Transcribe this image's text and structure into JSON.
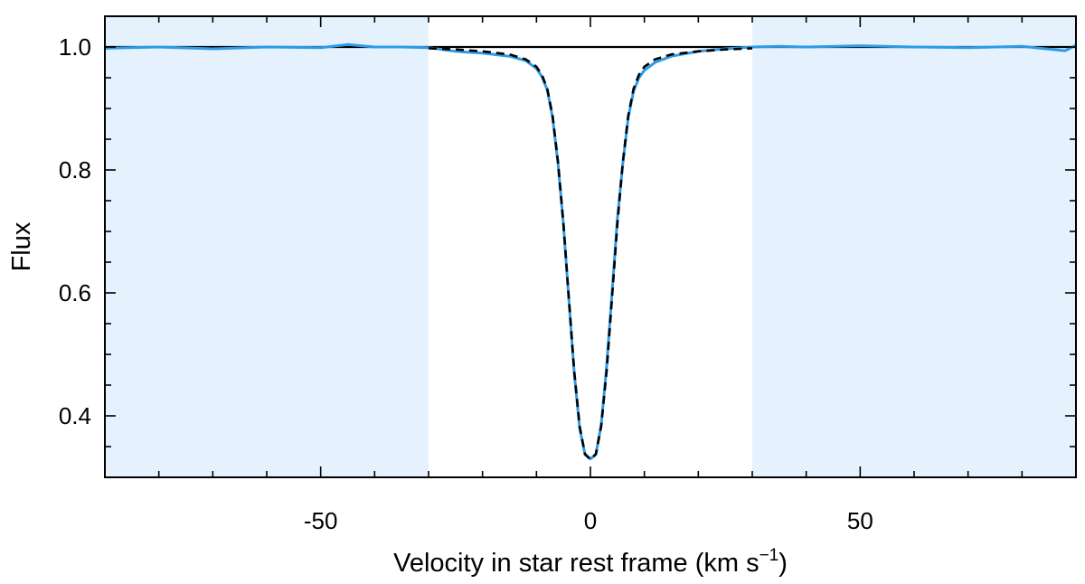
{
  "chart_data": {
    "type": "line",
    "title": "",
    "xlabel": "Velocity in star rest frame (km s",
    "xlabel_unit_exponent": "−1",
    "xlabel_close": ")",
    "ylabel": "Flux",
    "xlim": [
      -90,
      90
    ],
    "ylim": [
      0.3,
      1.05
    ],
    "x_ticks": [
      -50,
      0,
      50
    ],
    "x_tick_labels": [
      "-50",
      "0",
      "50"
    ],
    "y_ticks": [
      0.4,
      0.6,
      0.8,
      1.0
    ],
    "y_tick_labels": [
      "0.4",
      "0.6",
      "0.8",
      "1.0"
    ],
    "grid": false,
    "legend": "none",
    "shaded_regions": [
      {
        "x0": -90,
        "x1": -30,
        "color": "#e5f2fd"
      },
      {
        "x0": 30,
        "x1": 90,
        "color": "#e5f2fd"
      }
    ],
    "continuum": {
      "y": 1.0,
      "color": "#000000",
      "style": "solid"
    },
    "series": [
      {
        "style": "solid",
        "color": "#2d9be8",
        "x": [
          -90,
          -80,
          -70,
          -60,
          -50,
          -45,
          -40,
          -35,
          -30,
          -25,
          -20,
          -15,
          -12,
          -10,
          -9,
          -8,
          -7,
          -6,
          -5,
          -4,
          -3,
          -2,
          -1,
          0,
          1,
          2,
          3,
          4,
          5,
          6,
          7,
          8,
          9,
          10,
          12,
          15,
          20,
          25,
          30,
          35,
          40,
          50,
          60,
          70,
          80,
          88,
          90
        ],
        "y": [
          0.998,
          1.0,
          0.997,
          1.0,
          0.999,
          1.004,
          1.0,
          1.0,
          0.999,
          0.993,
          0.99,
          0.985,
          0.978,
          0.965,
          0.952,
          0.93,
          0.885,
          0.81,
          0.71,
          0.59,
          0.47,
          0.38,
          0.337,
          0.33,
          0.337,
          0.385,
          0.48,
          0.6,
          0.72,
          0.81,
          0.885,
          0.928,
          0.95,
          0.962,
          0.975,
          0.985,
          0.993,
          0.997,
          1.0,
          1.001,
          1.0,
          1.002,
          1.0,
          0.999,
          1.001,
          0.994,
          1.003
        ]
      },
      {
        "style": "dashed",
        "color": "#000000",
        "x": [
          -30,
          -25,
          -20,
          -15,
          -12,
          -10,
          -9,
          -8,
          -7,
          -6,
          -5,
          -4,
          -3,
          -2,
          -1,
          0,
          1,
          2,
          3,
          4,
          5,
          6,
          7,
          8,
          9,
          10,
          12,
          15,
          20,
          25,
          30
        ],
        "y": [
          0.998,
          0.996,
          0.993,
          0.988,
          0.98,
          0.968,
          0.955,
          0.932,
          0.888,
          0.812,
          0.712,
          0.592,
          0.472,
          0.383,
          0.338,
          0.329,
          0.338,
          0.383,
          0.472,
          0.592,
          0.712,
          0.812,
          0.888,
          0.932,
          0.955,
          0.968,
          0.98,
          0.988,
          0.993,
          0.996,
          0.998
        ]
      }
    ]
  }
}
